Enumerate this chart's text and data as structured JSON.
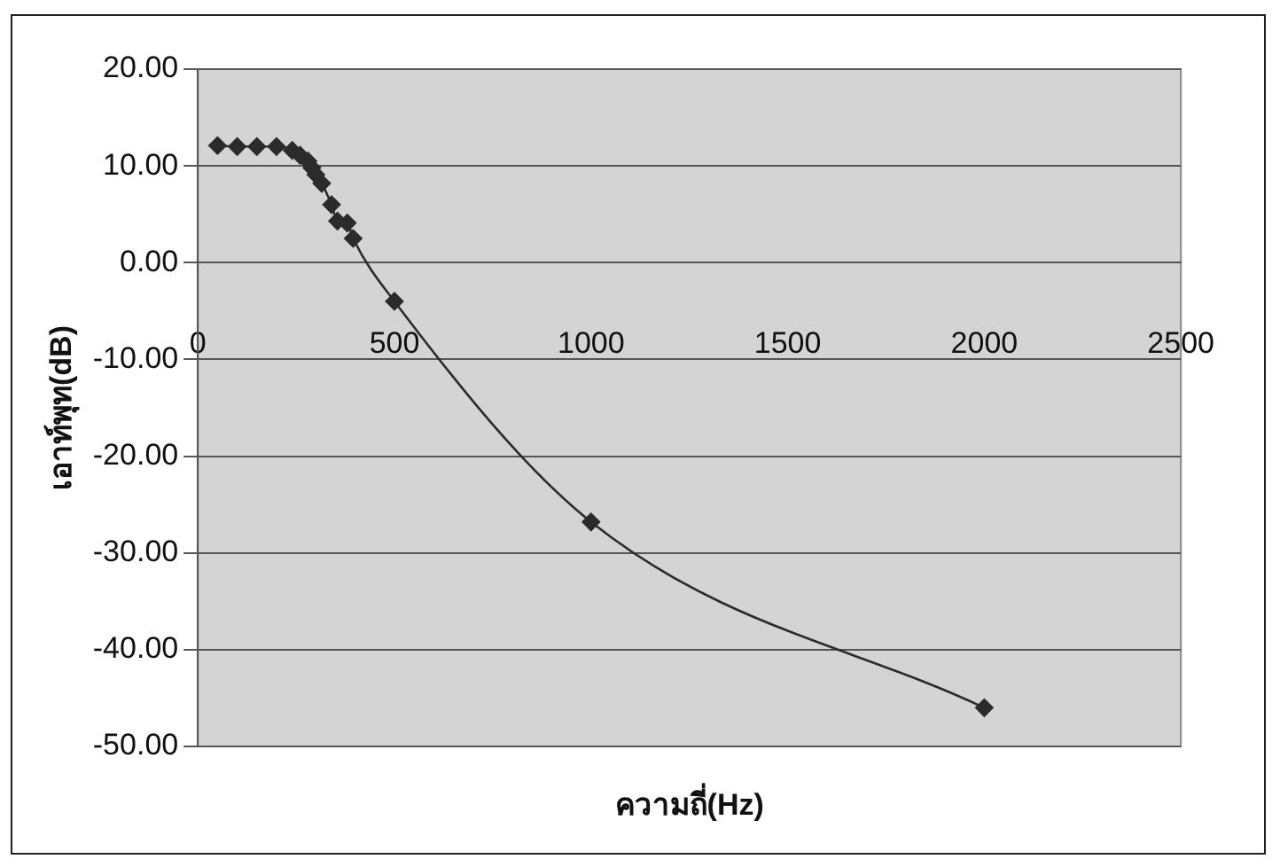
{
  "chart_data": {
    "type": "line",
    "xlabel": "ความถี่(Hz)",
    "ylabel": "เอาท์พุท(dB)",
    "x": [
      50,
      100,
      150,
      200,
      240,
      260,
      280,
      290,
      300,
      315,
      340,
      355,
      380,
      395,
      500,
      1000,
      2000
    ],
    "series": [
      {
        "color": "#2b2b2b",
        "values": [
          12.1,
          12.0,
          12.0,
          12.0,
          11.6,
          11.1,
          10.5,
          9.8,
          9.1,
          8.2,
          6.0,
          4.3,
          4.1,
          2.5,
          -4.0,
          -26.8,
          -46.0
        ]
      }
    ],
    "xlim": [
      0,
      2500
    ],
    "xticks": [
      0,
      500,
      1000,
      1500,
      2000,
      2500
    ],
    "ylim": [
      -50,
      20
    ],
    "yticks": [
      {
        "value": -50,
        "label": "-50.00"
      },
      {
        "value": -40,
        "label": "-40.00"
      },
      {
        "value": -30,
        "label": "-30.00"
      },
      {
        "value": -20,
        "label": "-20.00"
      },
      {
        "value": -10,
        "label": "-10.00"
      },
      {
        "value": 0,
        "label": "0.00"
      },
      {
        "value": 10,
        "label": "10.00"
      },
      {
        "value": 20,
        "label": "20.00"
      }
    ],
    "grid": "y",
    "legend": false,
    "marker": "diamond",
    "line_style": "solid"
  }
}
